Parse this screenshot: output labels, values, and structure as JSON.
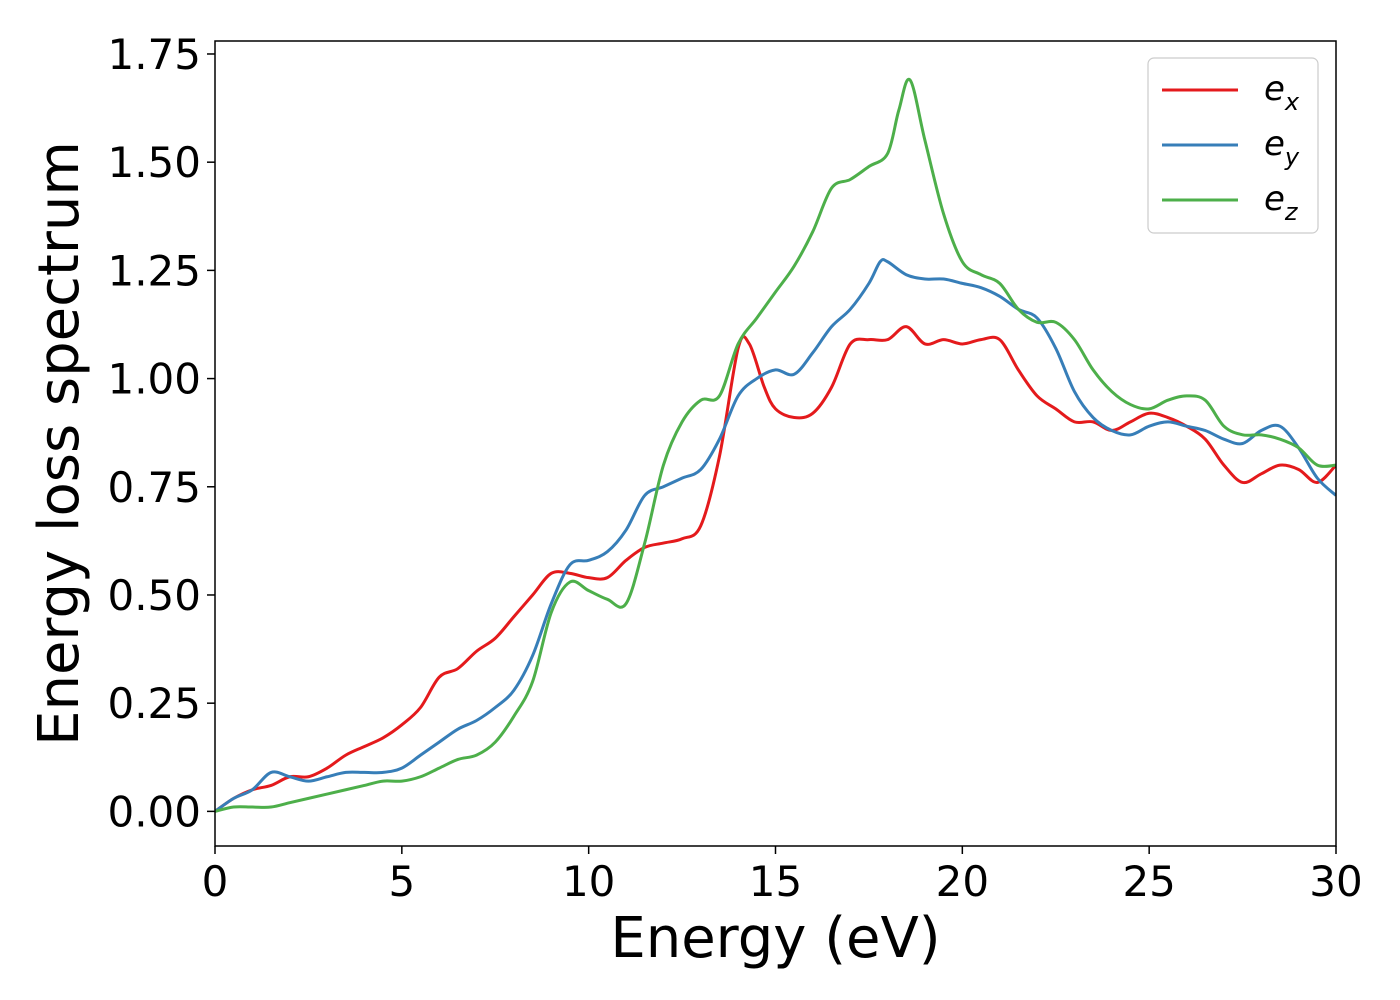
{
  "chart_data": {
    "type": "line",
    "title": "",
    "xlabel": "Energy (eV)",
    "ylabel": "Energy loss spectrum",
    "xlim": [
      0,
      30
    ],
    "ylim": [
      -0.08,
      1.78
    ],
    "xticks": [
      0,
      5,
      10,
      15,
      20,
      25,
      30
    ],
    "xtick_labels": [
      "0",
      "5",
      "10",
      "15",
      "20",
      "25",
      "30"
    ],
    "yticks": [
      0.0,
      0.25,
      0.5,
      0.75,
      1.0,
      1.25,
      1.5,
      1.75
    ],
    "ytick_labels": [
      "0.00",
      "0.25",
      "0.50",
      "0.75",
      "1.00",
      "1.25",
      "1.50",
      "1.75"
    ],
    "grid": false,
    "legend_position": "top-right",
    "series": [
      {
        "name": "e_x",
        "label_base": "e",
        "label_sub": "x",
        "color": "#e41a1c",
        "x": [
          0,
          0.5,
          1,
          1.5,
          2,
          2.5,
          3,
          3.5,
          4,
          4.5,
          5,
          5.5,
          6,
          6.5,
          7,
          7.5,
          8,
          8.5,
          9,
          9.5,
          10,
          10.5,
          11,
          11.5,
          12,
          12.5,
          13,
          13.5,
          14,
          14.3,
          14.7,
          15,
          15.5,
          16,
          16.5,
          17,
          17.5,
          18,
          18.5,
          19,
          19.5,
          20,
          20.5,
          21,
          21.5,
          22,
          22.5,
          23,
          23.5,
          24,
          24.5,
          25,
          25.5,
          26,
          26.5,
          27,
          27.5,
          28,
          28.5,
          29,
          29.5,
          30
        ],
        "y": [
          0.0,
          0.03,
          0.05,
          0.06,
          0.08,
          0.08,
          0.1,
          0.13,
          0.15,
          0.17,
          0.2,
          0.24,
          0.31,
          0.33,
          0.37,
          0.4,
          0.45,
          0.5,
          0.55,
          0.55,
          0.54,
          0.54,
          0.58,
          0.61,
          0.62,
          0.63,
          0.66,
          0.82,
          1.07,
          1.08,
          0.98,
          0.93,
          0.91,
          0.92,
          0.98,
          1.08,
          1.09,
          1.09,
          1.12,
          1.08,
          1.09,
          1.08,
          1.09,
          1.09,
          1.02,
          0.96,
          0.93,
          0.9,
          0.9,
          0.88,
          0.9,
          0.92,
          0.91,
          0.89,
          0.86,
          0.8,
          0.76,
          0.78,
          0.8,
          0.79,
          0.76,
          0.8
        ]
      },
      {
        "name": "e_y",
        "label_base": "e",
        "label_sub": "y",
        "color": "#377eb8",
        "x": [
          0,
          0.5,
          1,
          1.5,
          2,
          2.5,
          3,
          3.5,
          4,
          4.5,
          5,
          5.5,
          6,
          6.5,
          7,
          7.5,
          8,
          8.5,
          9,
          9.5,
          10,
          10.5,
          11,
          11.5,
          12,
          12.5,
          13,
          13.5,
          14,
          14.5,
          15,
          15.5,
          16,
          16.5,
          17,
          17.5,
          17.8,
          18,
          18.5,
          19,
          19.5,
          20,
          20.5,
          21,
          21.5,
          22,
          22.5,
          23,
          23.5,
          24,
          24.5,
          25,
          25.5,
          26,
          26.5,
          27,
          27.5,
          28,
          28.5,
          29,
          29.5,
          30
        ],
        "y": [
          0.0,
          0.03,
          0.05,
          0.09,
          0.08,
          0.07,
          0.08,
          0.09,
          0.09,
          0.09,
          0.1,
          0.13,
          0.16,
          0.19,
          0.21,
          0.24,
          0.28,
          0.36,
          0.48,
          0.57,
          0.58,
          0.6,
          0.65,
          0.73,
          0.75,
          0.77,
          0.79,
          0.86,
          0.96,
          1.0,
          1.02,
          1.01,
          1.06,
          1.12,
          1.16,
          1.22,
          1.27,
          1.27,
          1.24,
          1.23,
          1.23,
          1.22,
          1.21,
          1.19,
          1.16,
          1.14,
          1.07,
          0.97,
          0.91,
          0.88,
          0.87,
          0.89,
          0.9,
          0.89,
          0.88,
          0.86,
          0.85,
          0.88,
          0.89,
          0.84,
          0.77,
          0.73
        ]
      },
      {
        "name": "e_z",
        "label_base": "e",
        "label_sub": "z",
        "color": "#4daf4a",
        "x": [
          0,
          0.5,
          1,
          1.5,
          2,
          2.5,
          3,
          3.5,
          4,
          4.5,
          5,
          5.5,
          6,
          6.5,
          7,
          7.5,
          8,
          8.5,
          9,
          9.5,
          10,
          10.5,
          11,
          11.5,
          12,
          12.5,
          13,
          13.5,
          14,
          14.5,
          15,
          15.5,
          16,
          16.5,
          17,
          17.5,
          18,
          18.3,
          18.6,
          19,
          19.5,
          20,
          20.5,
          21,
          21.5,
          22,
          22.5,
          23,
          23.5,
          24,
          24.5,
          25,
          25.5,
          26,
          26.5,
          27,
          27.5,
          28,
          28.5,
          29,
          29.5,
          30
        ],
        "y": [
          0.0,
          0.01,
          0.01,
          0.01,
          0.02,
          0.03,
          0.04,
          0.05,
          0.06,
          0.07,
          0.07,
          0.08,
          0.1,
          0.12,
          0.13,
          0.16,
          0.22,
          0.3,
          0.46,
          0.53,
          0.51,
          0.49,
          0.48,
          0.62,
          0.8,
          0.9,
          0.95,
          0.96,
          1.08,
          1.14,
          1.2,
          1.26,
          1.34,
          1.44,
          1.46,
          1.49,
          1.52,
          1.62,
          1.69,
          1.55,
          1.38,
          1.27,
          1.24,
          1.22,
          1.16,
          1.13,
          1.13,
          1.09,
          1.02,
          0.97,
          0.94,
          0.93,
          0.95,
          0.96,
          0.95,
          0.89,
          0.87,
          0.87,
          0.86,
          0.84,
          0.8,
          0.8
        ]
      }
    ]
  }
}
